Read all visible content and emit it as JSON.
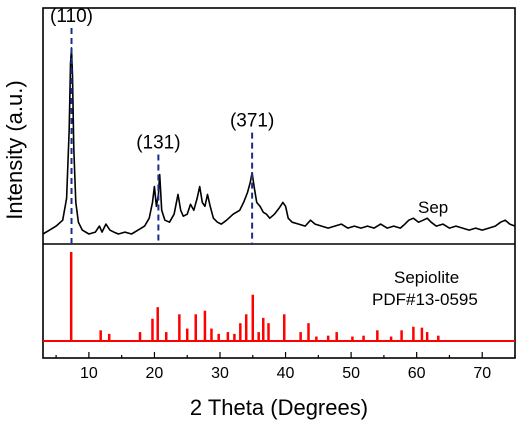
{
  "chart_data": {
    "type": "line",
    "xlabel": "2 Theta (Degrees)",
    "ylabel": "Intensity (a.u.)",
    "xlim": [
      3,
      75
    ],
    "x_ticks": [
      10,
      20,
      30,
      40,
      50,
      60,
      70
    ],
    "grid": false,
    "panels": [
      {
        "name": "Sep",
        "type": "line",
        "color": "#000000",
        "series_label": "Sep",
        "series": [
          {
            "name": "Sep",
            "x": [
              3.0,
              4.0,
              5.0,
              6.0,
              6.6,
              7.0,
              7.2,
              7.35,
              7.5,
              7.7,
              8.0,
              8.4,
              9.0,
              10.0,
              11.0,
              11.6,
              12.0,
              12.6,
              13.2,
              13.8,
              14.5,
              15.5,
              16.5,
              17.5,
              18.5,
              19.2,
              19.7,
              20.0,
              20.3,
              20.6,
              20.8,
              21.1,
              21.6,
              22.3,
              23.0,
              23.6,
              24.0,
              24.4,
              25.0,
              25.5,
              26.0,
              26.5,
              26.9,
              27.3,
              27.7,
              28.1,
              28.5,
              29.0,
              29.6,
              30.2,
              31.0,
              32.0,
              33.0,
              33.6,
              34.2,
              34.6,
              34.9,
              35.2,
              35.6,
              36.1,
              36.6,
              37.1,
              37.6,
              38.3,
              39.0,
              39.6,
              40.0,
              40.4,
              41.0,
              42.0,
              43.0,
              43.8,
              44.5,
              45.5,
              46.5,
              47.5,
              48.5,
              49.5,
              50.5,
              51.5,
              52.5,
              53.5,
              54.5,
              55.5,
              56.5,
              57.5,
              58.2,
              58.8,
              59.5,
              60.3,
              61.0,
              61.6,
              62.2,
              63.0,
              64.0,
              65.0,
              66.0,
              67.0,
              68.0,
              69.0,
              70.0,
              71.0,
              72.0,
              72.8,
              73.5,
              74.2,
              75.0
            ],
            "y": [
              2,
              4,
              6,
              9,
              20,
              55,
              88,
              96,
              82,
              45,
              18,
              8,
              4,
              2,
              3,
              6,
              3,
              7,
              4,
              3,
              2,
              3,
              2,
              4,
              6,
              10,
              18,
              26,
              16,
              22,
              32,
              14,
              9,
              8,
              12,
              22,
              14,
              11,
              12,
              17,
              14,
              20,
              26,
              18,
              16,
              22,
              16,
              10,
              8,
              7,
              9,
              12,
              14,
              18,
              23,
              28,
              33,
              26,
              18,
              16,
              13,
              12,
              10,
              12,
              15,
              18,
              16,
              10,
              8,
              7,
              6,
              9,
              7,
              6,
              5,
              6,
              7,
              5,
              6,
              5,
              6,
              5,
              7,
              5,
              6,
              5,
              7,
              9,
              10,
              8,
              9,
              10,
              8,
              6,
              7,
              5,
              6,
              5,
              4,
              5,
              4,
              5,
              6,
              8,
              9,
              7,
              6
            ]
          }
        ],
        "ylim": [
          0,
          100
        ],
        "annotations": [
          {
            "label": "(110)",
            "x": 7.35
          },
          {
            "label": "(131)",
            "x": 20.6
          },
          {
            "label": "(371)",
            "x": 34.9
          }
        ]
      },
      {
        "name": "reference",
        "type": "bar",
        "color": "#ff0000",
        "series_label": [
          "Sepiolite",
          "PDF#13-0595"
        ],
        "x": [
          7.3,
          11.8,
          13.1,
          17.8,
          19.7,
          20.5,
          21.8,
          23.8,
          25.0,
          26.3,
          27.7,
          28.7,
          29.8,
          31.2,
          32.2,
          33.1,
          34.0,
          35.0,
          35.9,
          36.6,
          37.4,
          39.8,
          42.3,
          43.5,
          44.7,
          46.5,
          47.8,
          50.2,
          51.9,
          54.0,
          56.1,
          57.7,
          59.5,
          60.8,
          61.6,
          63.3
        ],
        "y": [
          100,
          12,
          8,
          10,
          25,
          38,
          10,
          30,
          14,
          30,
          34,
          14,
          8,
          10,
          8,
          20,
          30,
          52,
          10,
          26,
          20,
          30,
          10,
          20,
          5,
          6,
          10,
          5,
          6,
          12,
          5,
          12,
          16,
          15,
          10,
          6
        ],
        "ylim": [
          0,
          100
        ]
      }
    ]
  }
}
